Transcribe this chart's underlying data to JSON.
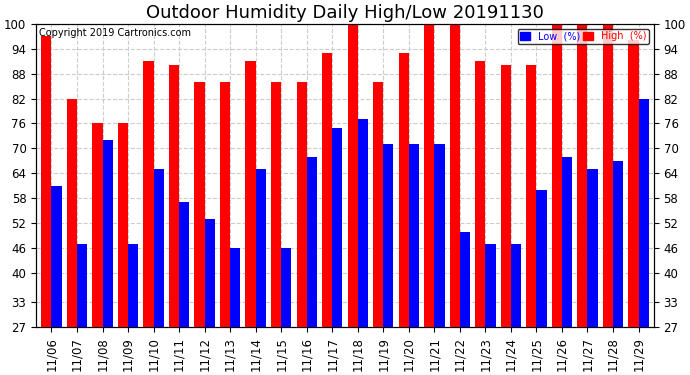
{
  "title": "Outdoor Humidity Daily High/Low 20191130",
  "copyright": "Copyright 2019 Cartronics.com",
  "legend_low": "Low  (%)",
  "legend_high": "High  (%)",
  "dates": [
    "11/06",
    "11/07",
    "11/08",
    "11/09",
    "11/10",
    "11/11",
    "11/12",
    "11/13",
    "11/14",
    "11/15",
    "11/16",
    "11/17",
    "11/18",
    "11/19",
    "11/20",
    "11/21",
    "11/22",
    "11/23",
    "11/24",
    "11/25",
    "11/26",
    "11/27",
    "11/28",
    "11/29"
  ],
  "high": [
    97,
    82,
    76,
    76,
    91,
    90,
    86,
    86,
    91,
    86,
    86,
    93,
    100,
    86,
    93,
    100,
    100,
    91,
    90,
    90,
    100,
    100,
    100,
    96
  ],
  "low": [
    61,
    47,
    72,
    47,
    65,
    57,
    53,
    46,
    65,
    46,
    68,
    75,
    77,
    71,
    71,
    71,
    50,
    47,
    47,
    60,
    68,
    65,
    67,
    82
  ],
  "ylim_min": 27,
  "ylim_max": 100,
  "yticks": [
    27,
    33,
    40,
    46,
    52,
    58,
    64,
    70,
    76,
    82,
    88,
    94,
    100
  ],
  "bar_color_high": "#FF0000",
  "bar_color_low": "#0000FF",
  "background_color": "#FFFFFF",
  "grid_color": "#CCCCCC",
  "title_fontsize": 13,
  "tick_fontsize": 8.5,
  "bar_width": 0.4
}
